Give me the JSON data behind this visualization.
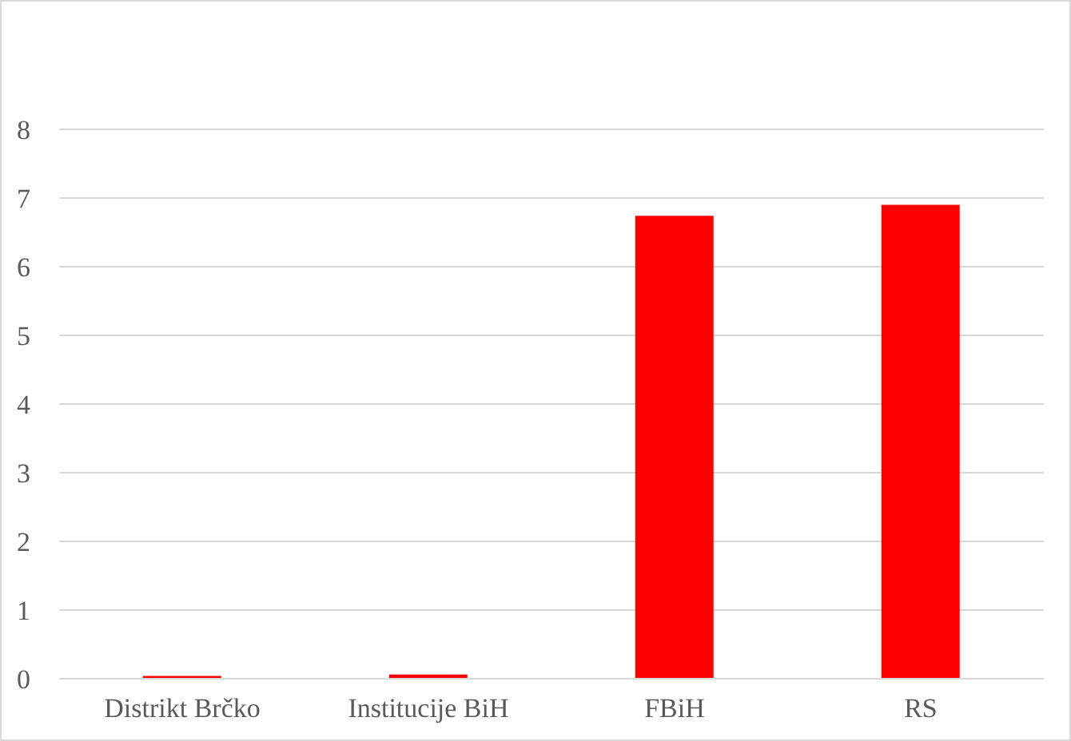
{
  "chart_data": {
    "type": "bar",
    "categories": [
      "Distrikt Brčko",
      "Institucije BiH",
      "FBiH",
      "RS"
    ],
    "values": [
      0.04,
      0.06,
      6.74,
      6.9
    ],
    "color": "#ff0000",
    "ylim": [
      0,
      8
    ],
    "yticks": [
      0,
      1,
      2,
      3,
      4,
      5,
      6,
      7,
      8
    ],
    "grid": "y"
  }
}
